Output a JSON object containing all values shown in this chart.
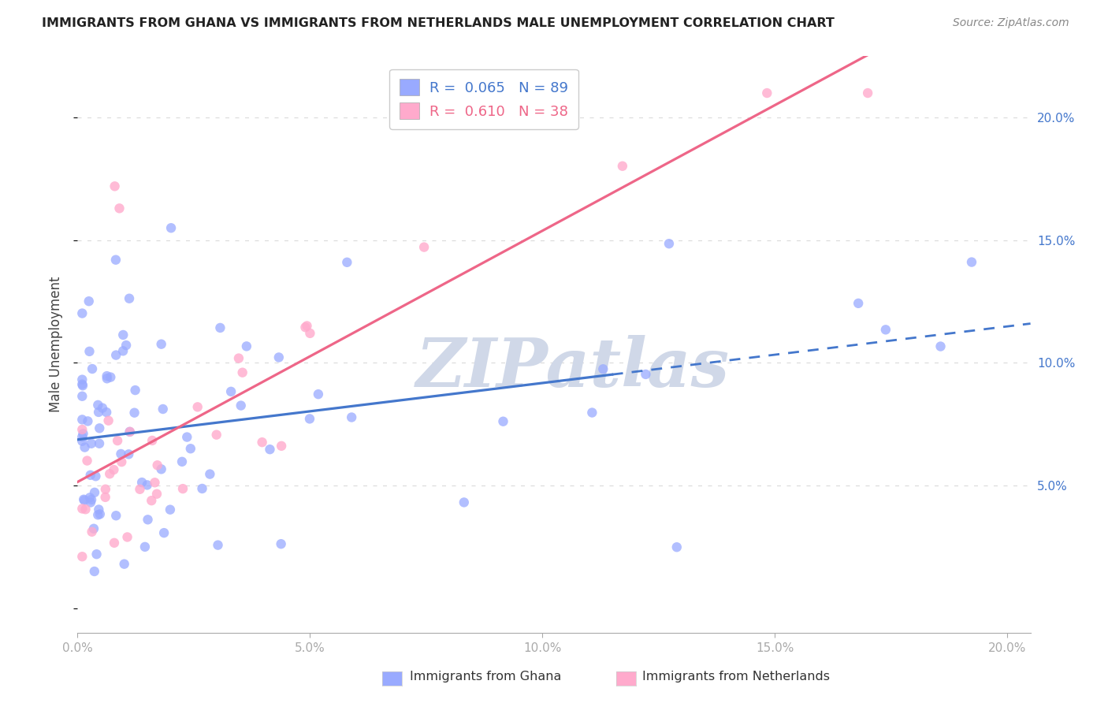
{
  "title": "IMMIGRANTS FROM GHANA VS IMMIGRANTS FROM NETHERLANDS MALE UNEMPLOYMENT CORRELATION CHART",
  "source": "Source: ZipAtlas.com",
  "ylabel": "Male Unemployment",
  "xlim": [
    0.0,
    0.205
  ],
  "ylim": [
    -0.01,
    0.225
  ],
  "xticks": [
    0.0,
    0.05,
    0.1,
    0.15,
    0.2
  ],
  "yticks": [
    0.05,
    0.1,
    0.15,
    0.2
  ],
  "xticklabels": [
    "0.0%",
    "5.0%",
    "10.0%",
    "15.0%",
    "20.0%"
  ],
  "yticklabels": [
    "5.0%",
    "10.0%",
    "15.0%",
    "20.0%"
  ],
  "ghana_color": "#99aaff",
  "netherlands_color": "#ffaacc",
  "ghana_R": 0.065,
  "ghana_N": 89,
  "netherlands_R": 0.61,
  "netherlands_N": 38,
  "ghana_trend_color": "#4477cc",
  "netherlands_trend_color": "#ee6688",
  "watermark_text": "ZIPatlas",
  "watermark_color": "#d0d8e8",
  "legend_label_ghana": "Immigrants from Ghana",
  "legend_label_netherlands": "Immigrants from Netherlands",
  "tick_color": "#aaaaaa",
  "grid_color": "#dddddd",
  "title_color": "#222222",
  "source_color": "#888888",
  "ylabel_color": "#444444"
}
